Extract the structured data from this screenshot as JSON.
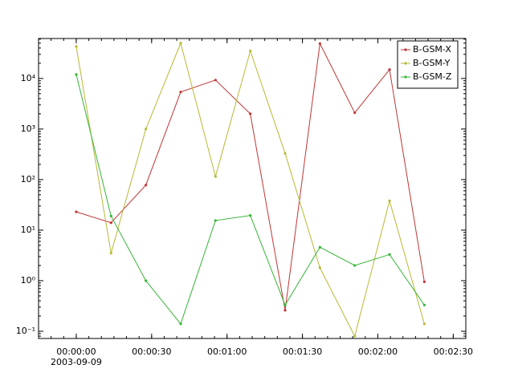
{
  "chart_data": {
    "type": "line",
    "log_y": true,
    "legend": "upper right",
    "x_date_label": "2003-09-09",
    "x": [
      0,
      13.85,
      27.7,
      41.55,
      55.4,
      69.25,
      83.1,
      96.95,
      110.8,
      124.65,
      138.5
    ],
    "series": [
      {
        "name": "B-GSM-X",
        "color": "#c03535",
        "values": [
          23,
          14,
          78,
          5400,
          9300,
          2000,
          0.26,
          49000,
          2100,
          15000,
          0.95
        ]
      },
      {
        "name": "B-GSM-Y",
        "color": "#b8b835",
        "values": [
          43000,
          3.5,
          1000,
          50000,
          115,
          35000,
          330,
          1.8,
          0.08,
          38,
          0.14
        ]
      },
      {
        "name": "B-GSM-Z",
        "color": "#35b535",
        "values": [
          12000,
          19,
          1.0,
          0.14,
          15.5,
          19.5,
          0.33,
          4.6,
          2.0,
          3.3,
          0.33
        ]
      }
    ],
    "xlim": [
      -15,
      155
    ],
    "xticks": [
      {
        "value": 0,
        "label": "00:00:00"
      },
      {
        "value": 30,
        "label": "00:00:30"
      },
      {
        "value": 60,
        "label": "00:01:00"
      },
      {
        "value": 90,
        "label": "00:01:30"
      },
      {
        "value": 120,
        "label": "00:02:00"
      },
      {
        "value": 150,
        "label": "00:02:30"
      }
    ],
    "ylim": [
      0.072,
      61700
    ],
    "yticks": [
      {
        "value": 0.1,
        "label": "10⁻¹"
      },
      {
        "value": 1,
        "label": "10⁰"
      },
      {
        "value": 10,
        "label": "10¹"
      },
      {
        "value": 100,
        "label": "10²"
      },
      {
        "value": 1000,
        "label": "10³"
      },
      {
        "value": 10000,
        "label": "10⁴"
      }
    ]
  }
}
